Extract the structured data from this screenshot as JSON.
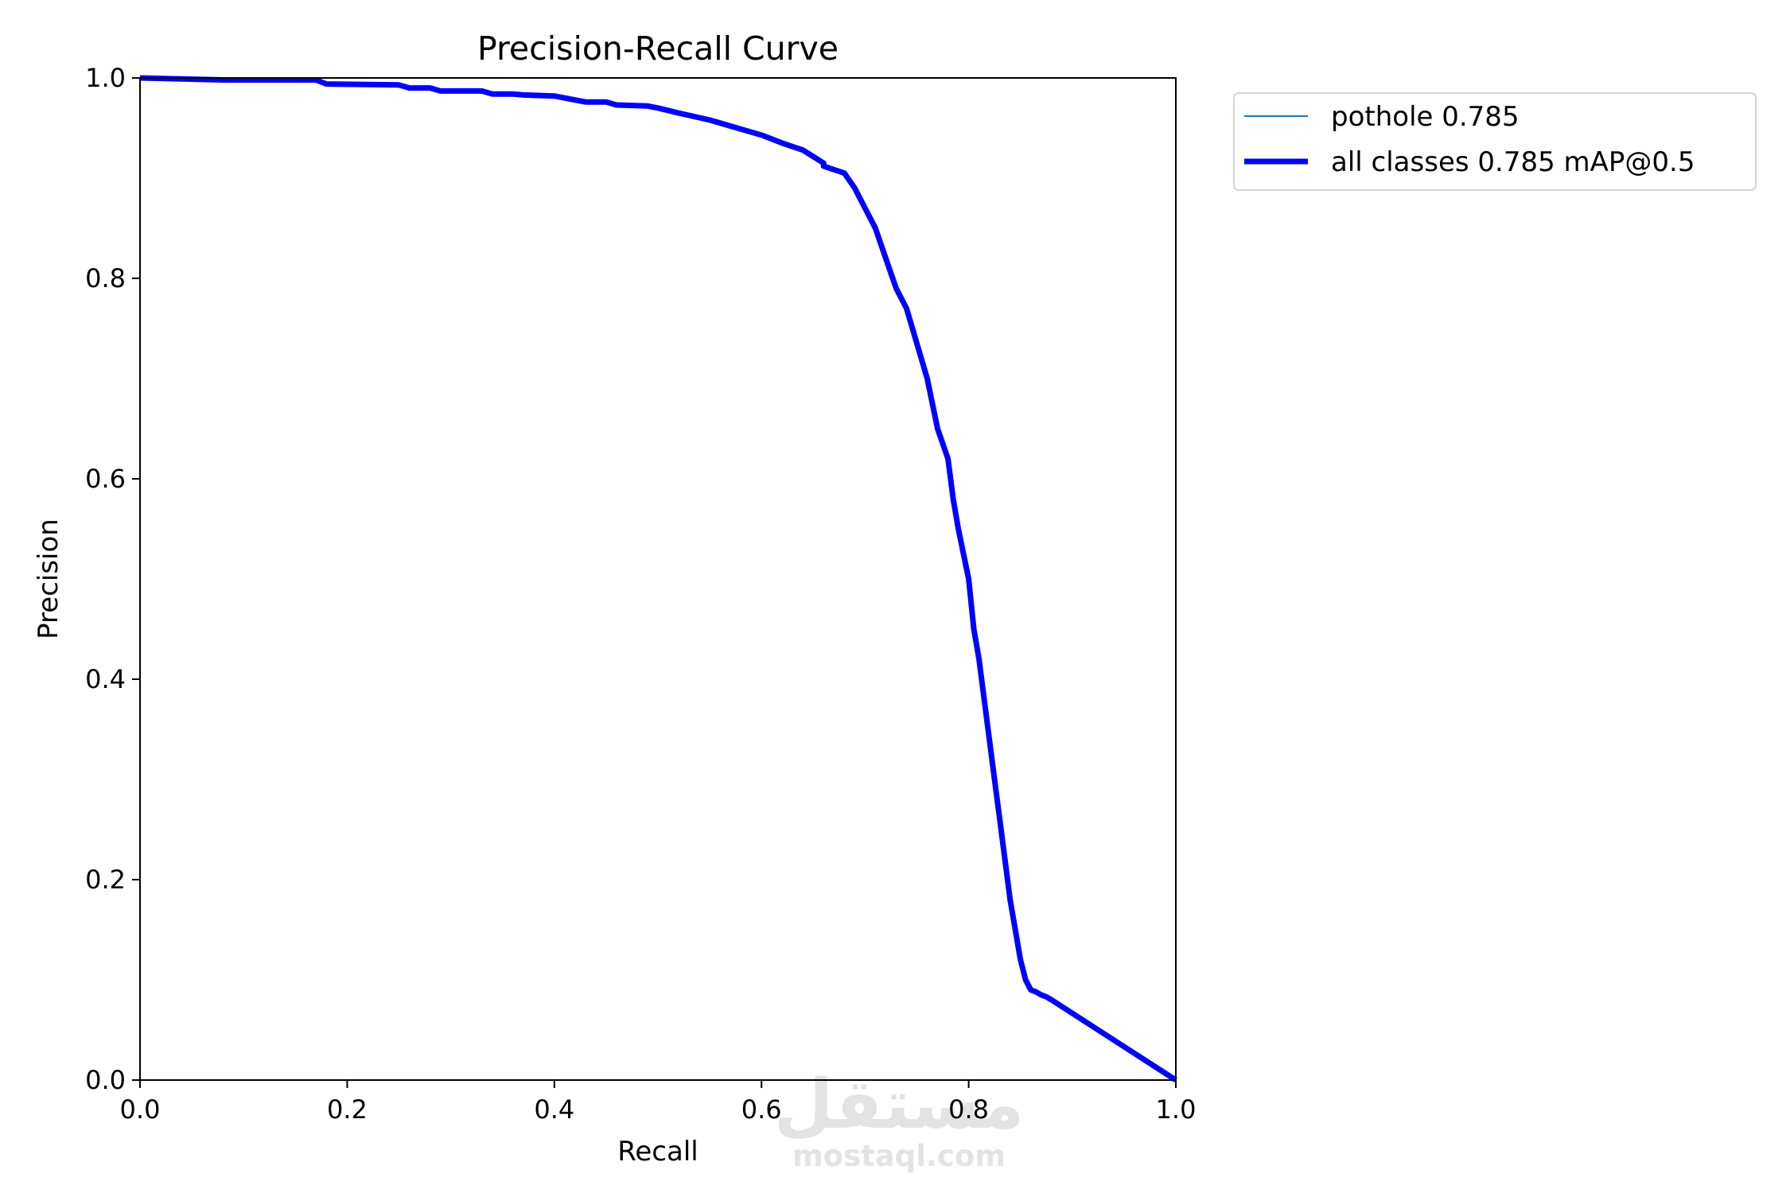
{
  "watermark": {
    "arabic": "مستقل",
    "latin": "mostaql.com"
  },
  "chart_data": {
    "type": "line",
    "title": "Precision-Recall Curve",
    "xlabel": "Recall",
    "ylabel": "Precision",
    "xlim": [
      0,
      1
    ],
    "ylim": [
      0,
      1
    ],
    "xticks": [
      "0.0",
      "0.2",
      "0.4",
      "0.6",
      "0.8",
      "1.0"
    ],
    "yticks": [
      "0.0",
      "0.2",
      "0.4",
      "0.6",
      "0.8",
      "1.0"
    ],
    "grid": false,
    "legend_position": "outside-top-right",
    "series": [
      {
        "name": "pothole 0.785",
        "color": "#1f77b4",
        "linewidth": "thin",
        "x": [
          0.0,
          0.08,
          0.17,
          0.18,
          0.25,
          0.26,
          0.28,
          0.29,
          0.33,
          0.34,
          0.36,
          0.37,
          0.4,
          0.42,
          0.43,
          0.45,
          0.46,
          0.49,
          0.5,
          0.52,
          0.55,
          0.57,
          0.6,
          0.62,
          0.64,
          0.66,
          0.66,
          0.68,
          0.69,
          0.7,
          0.71,
          0.72,
          0.73,
          0.74,
          0.75,
          0.76,
          0.77,
          0.78,
          0.785,
          0.79,
          0.8,
          0.805,
          0.81,
          0.815,
          0.82,
          0.825,
          0.83,
          0.835,
          0.84,
          0.845,
          0.85,
          0.855,
          0.86,
          0.865,
          0.87,
          0.875,
          0.88,
          1.0
        ],
        "y": [
          1.0,
          0.998,
          0.998,
          0.994,
          0.993,
          0.99,
          0.99,
          0.987,
          0.987,
          0.984,
          0.984,
          0.983,
          0.982,
          0.978,
          0.976,
          0.976,
          0.973,
          0.972,
          0.97,
          0.965,
          0.958,
          0.952,
          0.943,
          0.935,
          0.928,
          0.915,
          0.912,
          0.905,
          0.89,
          0.87,
          0.85,
          0.82,
          0.79,
          0.77,
          0.735,
          0.7,
          0.65,
          0.62,
          0.58,
          0.55,
          0.5,
          0.45,
          0.42,
          0.38,
          0.34,
          0.3,
          0.26,
          0.22,
          0.18,
          0.15,
          0.12,
          0.1,
          0.09,
          0.088,
          0.085,
          0.083,
          0.08,
          0.0
        ]
      },
      {
        "name": "all classes 0.785 mAP@0.5",
        "color": "#0000ff",
        "linewidth": "thick",
        "x": [
          0.0,
          0.08,
          0.17,
          0.18,
          0.25,
          0.26,
          0.28,
          0.29,
          0.33,
          0.34,
          0.36,
          0.37,
          0.4,
          0.42,
          0.43,
          0.45,
          0.46,
          0.49,
          0.5,
          0.52,
          0.55,
          0.57,
          0.6,
          0.62,
          0.64,
          0.66,
          0.66,
          0.68,
          0.69,
          0.7,
          0.71,
          0.72,
          0.73,
          0.74,
          0.75,
          0.76,
          0.77,
          0.78,
          0.785,
          0.79,
          0.8,
          0.805,
          0.81,
          0.815,
          0.82,
          0.825,
          0.83,
          0.835,
          0.84,
          0.845,
          0.85,
          0.855,
          0.86,
          0.865,
          0.87,
          0.875,
          0.88,
          1.0
        ],
        "y": [
          1.0,
          0.998,
          0.998,
          0.994,
          0.993,
          0.99,
          0.99,
          0.987,
          0.987,
          0.984,
          0.984,
          0.983,
          0.982,
          0.978,
          0.976,
          0.976,
          0.973,
          0.972,
          0.97,
          0.965,
          0.958,
          0.952,
          0.943,
          0.935,
          0.928,
          0.915,
          0.912,
          0.905,
          0.89,
          0.87,
          0.85,
          0.82,
          0.79,
          0.77,
          0.735,
          0.7,
          0.65,
          0.62,
          0.58,
          0.55,
          0.5,
          0.45,
          0.42,
          0.38,
          0.34,
          0.3,
          0.26,
          0.22,
          0.18,
          0.15,
          0.12,
          0.1,
          0.09,
          0.088,
          0.085,
          0.083,
          0.08,
          0.0
        ]
      }
    ]
  }
}
